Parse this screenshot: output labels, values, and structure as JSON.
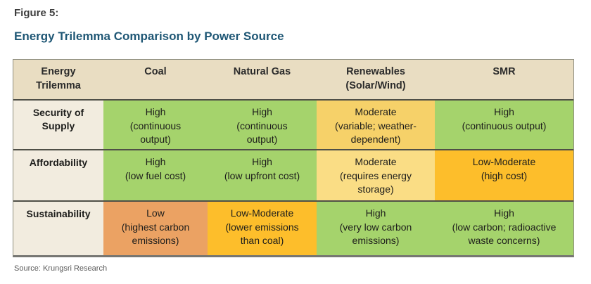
{
  "figure": {
    "label": "Figure 5:",
    "title": "Energy Trilemma Comparison by Power Source"
  },
  "source": "Source: Krungsri Research",
  "colors": {
    "green": "#a5d36c",
    "yellow": "#f6d169",
    "yellow_light": "#fadd85",
    "amber": "#fdbe2b",
    "orange": "#eba263",
    "header_bg": "#e9ddc2",
    "label_bg": "#f2ecdf",
    "title_blue": "#1f5775"
  },
  "table": {
    "columns": [
      "Energy\nTrilemma",
      "Coal",
      "Natural Gas",
      "Renewables\n(Solar/Wind)",
      "SMR"
    ],
    "rows": [
      {
        "label": "Security of\nSupply",
        "cells": [
          {
            "text": "High\n(continuous\noutput)",
            "color": "green"
          },
          {
            "text": "High\n(continuous\noutput)",
            "color": "green"
          },
          {
            "text": "Moderate\n(variable; weather-\ndependent)",
            "color": "yellow"
          },
          {
            "text": "High\n(continuous output)",
            "color": "green"
          }
        ]
      },
      {
        "label": "Affordability",
        "cells": [
          {
            "text": "High\n(low fuel cost)",
            "color": "green"
          },
          {
            "text": "High\n(low upfront cost)",
            "color": "green"
          },
          {
            "text": "Moderate\n(requires energy\nstorage)",
            "color": "yellow_light"
          },
          {
            "text": "Low-Moderate\n(high cost)",
            "color": "amber"
          }
        ]
      },
      {
        "label": "Sustainability",
        "cells": [
          {
            "text": "Low\n(highest carbon\nemissions)",
            "color": "orange"
          },
          {
            "text": "Low-Moderate\n(lower emissions\nthan coal)",
            "color": "amber"
          },
          {
            "text": "High\n(very low carbon\nemissions)",
            "color": "green"
          },
          {
            "text": "High\n(low carbon; radioactive\nwaste concerns)",
            "color": "green"
          }
        ]
      }
    ]
  }
}
